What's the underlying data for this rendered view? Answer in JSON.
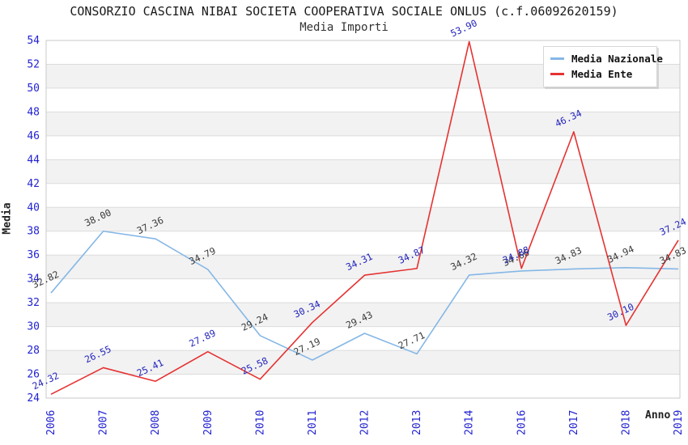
{
  "chart_data": {
    "type": "line",
    "title": "CONSORZIO CASCINA NIBAI SOCIETA COOPERATIVA SOCIALE ONLUS (c.f.06092620159)",
    "subtitle": "Media Importi",
    "xlabel": "Anno",
    "ylabel": "Media",
    "categories": [
      "2006",
      "2007",
      "2008",
      "2009",
      "2010",
      "2011",
      "2012",
      "2013",
      "2014",
      "2016",
      "2017",
      "2018",
      "2019"
    ],
    "ylim": [
      24,
      54
    ],
    "ytick_step": 2,
    "grid": "horizontal-bands",
    "legend_position": "top-right",
    "axis_tick_color": "#2222d2",
    "band_color": "#f2f2f2",
    "gridline_color": "#dcdcdc",
    "plot_border_color": "#c9c9c9",
    "series": [
      {
        "name": "Media Nazionale",
        "color": "#85b7e6",
        "label_color": "#3a3a3a",
        "values": [
          "32.82",
          "38.00",
          "37.36",
          "34.79",
          "29.24",
          "27.19",
          "29.43",
          "27.71",
          "34.32",
          "34.66",
          "34.83",
          "34.94",
          "34.83"
        ]
      },
      {
        "name": "Media Ente",
        "color": "#e63232",
        "label_color": "#2424bd",
        "values": [
          "24.32",
          "26.55",
          "25.41",
          "27.89",
          "25.58",
          "30.34",
          "34.31",
          "34.87",
          "53.90",
          "34.88",
          "46.34",
          "30.10",
          "37.24"
        ]
      }
    ]
  }
}
